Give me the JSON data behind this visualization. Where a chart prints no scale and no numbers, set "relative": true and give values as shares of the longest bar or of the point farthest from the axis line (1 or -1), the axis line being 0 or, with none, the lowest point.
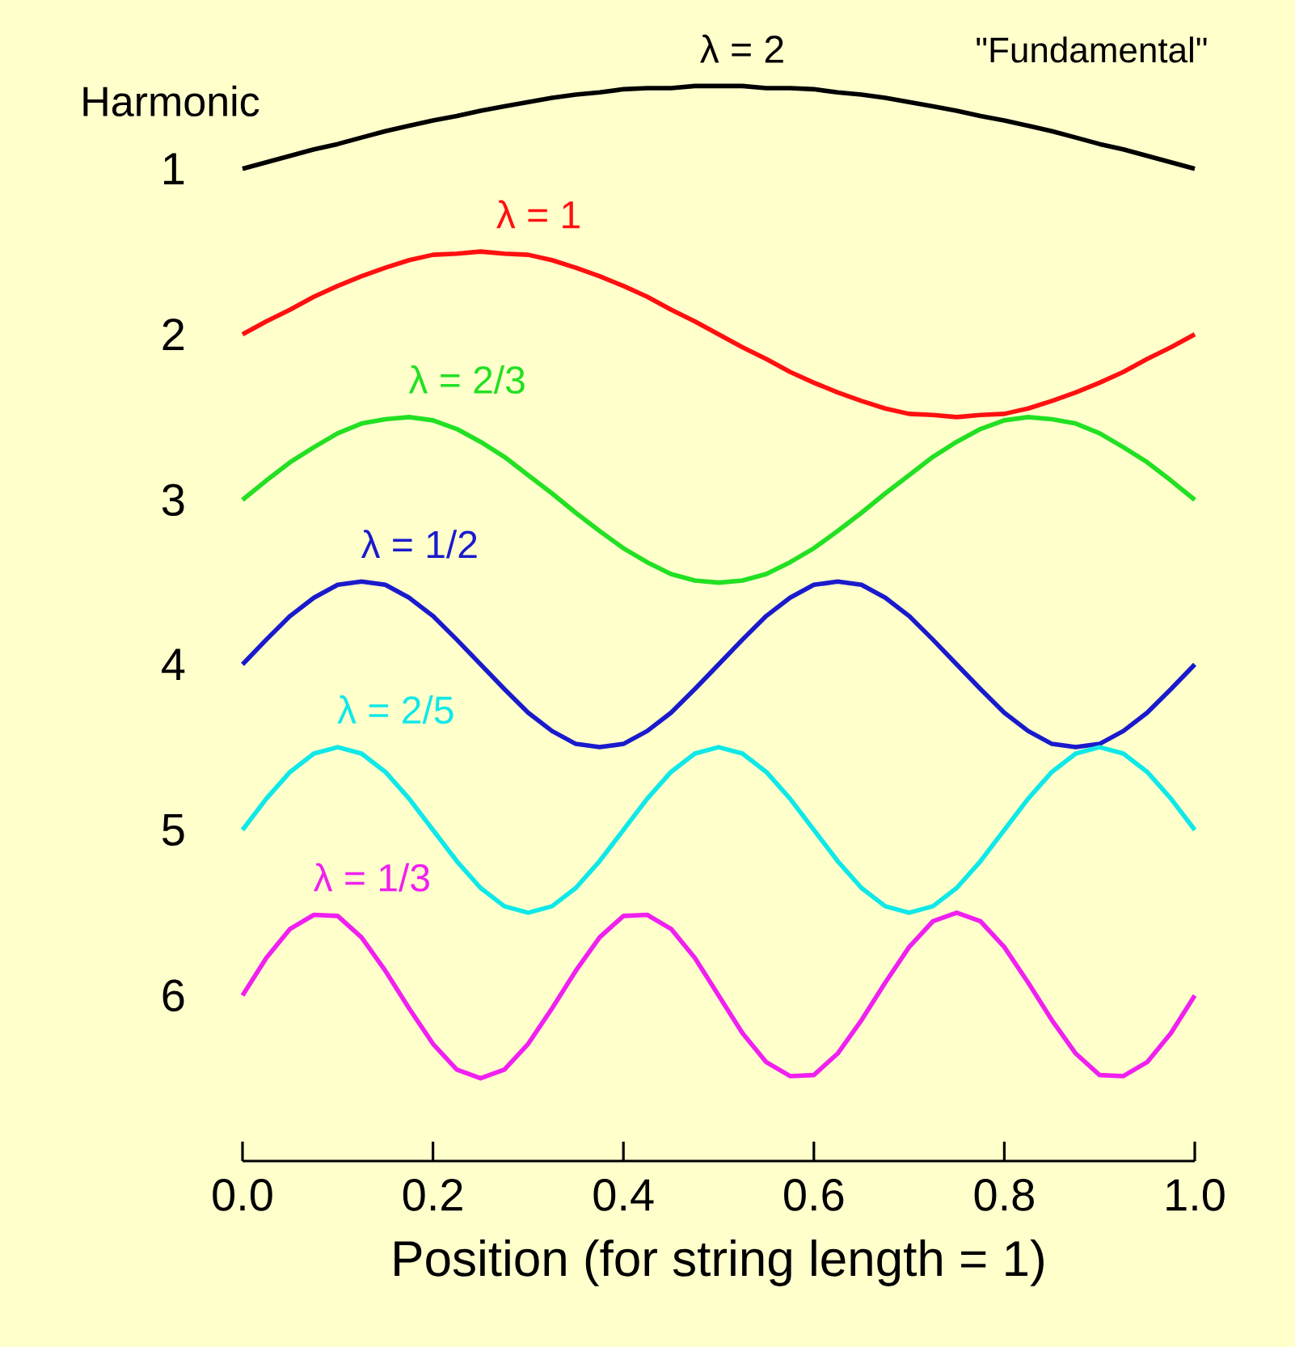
{
  "chart_data": {
    "type": "line",
    "relative": true,
    "xlabel": "Position (for string length = 1)",
    "ylabel": "Harmonic",
    "x": [
      0,
      0.025,
      0.05,
      0.075,
      0.1,
      0.125,
      0.15,
      0.175,
      0.2,
      0.225,
      0.25,
      0.275,
      0.3,
      0.325,
      0.35,
      0.375,
      0.4,
      0.425,
      0.45,
      0.475,
      0.5,
      0.525,
      0.55,
      0.575,
      0.6,
      0.625,
      0.65,
      0.675,
      0.7,
      0.725,
      0.75,
      0.775,
      0.8,
      0.825,
      0.85,
      0.875,
      0.9,
      0.925,
      0.95,
      0.975,
      1
    ],
    "series": [
      {
        "name": "1",
        "color": "#000000",
        "values": [
          0.923,
          0.929,
          0.935,
          0.941,
          0.946,
          0.952,
          0.958,
          0.963,
          0.968,
          0.972,
          0.977,
          0.981,
          0.985,
          0.989,
          0.992,
          0.994,
          0.997,
          0.998,
          0.998,
          1,
          1,
          1,
          0.998,
          0.998,
          0.997,
          0.994,
          0.992,
          0.989,
          0.985,
          0.981,
          0.977,
          0.972,
          0.968,
          0.963,
          0.958,
          0.952,
          0.946,
          0.941,
          0.935,
          0.929,
          0.923
        ]
      },
      {
        "name": "2",
        "color": "#ff1010",
        "values": [
          0.769,
          0.781,
          0.792,
          0.804,
          0.814,
          0.823,
          0.831,
          0.838,
          0.843,
          0.844,
          0.846,
          0.844,
          0.843,
          0.838,
          0.831,
          0.823,
          0.814,
          0.804,
          0.792,
          0.781,
          0.769,
          0.757,
          0.746,
          0.734,
          0.724,
          0.715,
          0.707,
          0.7,
          0.695,
          0.694,
          0.692,
          0.694,
          0.695,
          0.7,
          0.707,
          0.715,
          0.724,
          0.734,
          0.746,
          0.757,
          0.769
        ]
      },
      {
        "name": "3",
        "color": "#22e022",
        "values": [
          0.615,
          0.633,
          0.65,
          0.664,
          0.677,
          0.686,
          0.69,
          0.692,
          0.689,
          0.681,
          0.669,
          0.655,
          0.638,
          0.621,
          0.603,
          0.586,
          0.57,
          0.557,
          0.546,
          0.54,
          0.538,
          0.54,
          0.546,
          0.557,
          0.57,
          0.586,
          0.603,
          0.621,
          0.638,
          0.655,
          0.669,
          0.681,
          0.689,
          0.692,
          0.69,
          0.686,
          0.677,
          0.664,
          0.65,
          0.633,
          0.615
        ]
      },
      {
        "name": "4",
        "color": "#1a1acc",
        "values": [
          0.462,
          0.485,
          0.507,
          0.524,
          0.536,
          0.539,
          0.536,
          0.524,
          0.507,
          0.485,
          0.462,
          0.439,
          0.417,
          0.4,
          0.388,
          0.385,
          0.388,
          0.4,
          0.417,
          0.439,
          0.462,
          0.485,
          0.507,
          0.524,
          0.536,
          0.539,
          0.536,
          0.524,
          0.507,
          0.485,
          0.462,
          0.439,
          0.417,
          0.4,
          0.388,
          0.385,
          0.388,
          0.4,
          0.417,
          0.439,
          0.462
        ]
      },
      {
        "name": "5",
        "color": "#10e8e8",
        "values": [
          0.308,
          0.337,
          0.362,
          0.379,
          0.385,
          0.379,
          0.362,
          0.337,
          0.308,
          0.279,
          0.254,
          0.237,
          0.231,
          0.237,
          0.254,
          0.279,
          0.308,
          0.337,
          0.362,
          0.379,
          0.385,
          0.379,
          0.362,
          0.337,
          0.308,
          0.279,
          0.254,
          0.237,
          0.231,
          0.237,
          0.254,
          0.279,
          0.308,
          0.337,
          0.362,
          0.379,
          0.385,
          0.379,
          0.362,
          0.337,
          0.308
        ]
      },
      {
        "name": "6",
        "color": "#f020f0",
        "values": [
          0.154,
          0.189,
          0.216,
          0.229,
          0.228,
          0.208,
          0.177,
          0.142,
          0.109,
          0.085,
          0.077,
          0.085,
          0.109,
          0.142,
          0.177,
          0.208,
          0.228,
          0.229,
          0.216,
          0.189,
          0.154,
          0.119,
          0.092,
          0.079,
          0.08,
          0.1,
          0.131,
          0.166,
          0.199,
          0.223,
          0.231,
          0.223,
          0.199,
          0.166,
          0.131,
          0.1,
          0.08,
          0.079,
          0.092,
          0.119,
          0.154
        ]
      }
    ],
    "xlim": [
      0,
      1
    ],
    "xticks": [
      {
        "value": 0,
        "label": "0.0"
      },
      {
        "value": 0.2,
        "label": "0.2"
      },
      {
        "value": 0.4,
        "label": "0.4"
      },
      {
        "value": 0.6,
        "label": "0.6"
      },
      {
        "value": 0.8,
        "label": "0.8"
      },
      {
        "value": 1,
        "label": "1.0"
      }
    ],
    "annotations": [
      "λ = 2",
      "\"Fundamental\"",
      "λ = 1",
      "λ = 2/3",
      "λ = 1/2",
      "λ = 2/5",
      "λ = 1/3"
    ]
  }
}
